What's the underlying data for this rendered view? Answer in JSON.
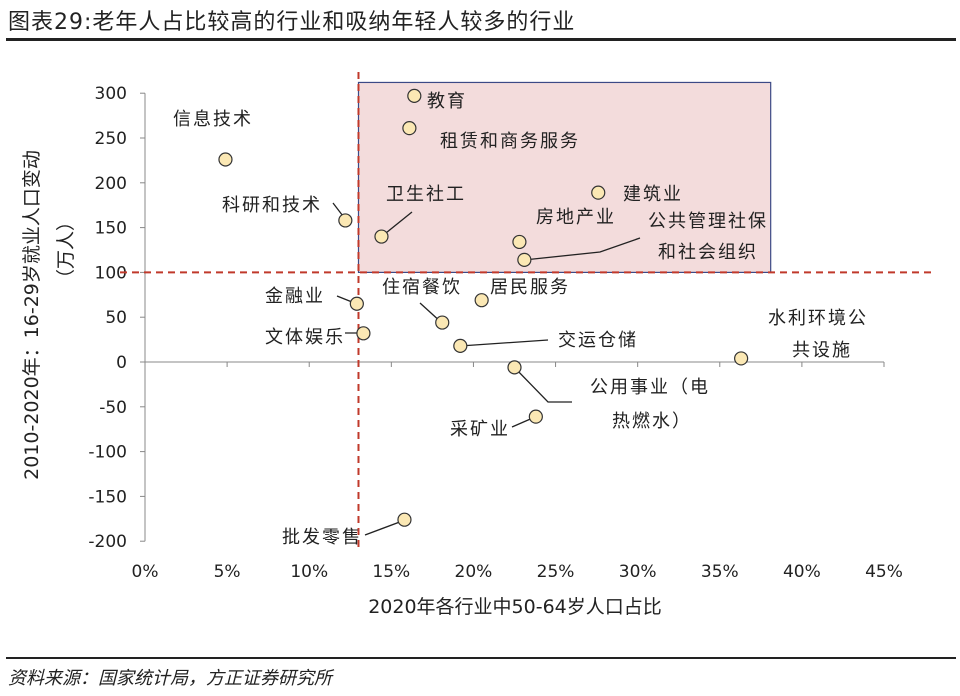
{
  "title": "图表29:老年人占比较高的行业和吸纳年轻人较多的行业",
  "source": "资料来源：国家统计局，方正证券研究所",
  "chart_data": {
    "type": "scatter",
    "xlabel": "2020年各行业中50-64岁人口占比",
    "ylabel": "2010-2020年：16-29岁就业人口变动",
    "ylabel2": "（万人）",
    "xlim": [
      0,
      45
    ],
    "ylim": [
      -200,
      300
    ],
    "xticks": [
      "0%",
      "5%",
      "10%",
      "15%",
      "20%",
      "25%",
      "30%",
      "35%",
      "40%",
      "45%"
    ],
    "yticks": [
      "300",
      "250",
      "200",
      "150",
      "100",
      "50",
      "0",
      "-50",
      "-100",
      "-150",
      "-200"
    ],
    "reference_lines": {
      "x": 13,
      "y": 100
    },
    "highlight_box": {
      "x": [
        13,
        38.1
      ],
      "y": [
        100,
        312
      ]
    },
    "marker_color": "#fbe8b4",
    "ref_line_color": "#c0392b",
    "box_color": "#3c4a86",
    "points": [
      {
        "label": "信息技术",
        "x": 4.9,
        "y": 226
      },
      {
        "label": "教育",
        "x": 16.4,
        "y": 297
      },
      {
        "label": "租赁和商务服务",
        "x": 16.1,
        "y": 261
      },
      {
        "label": "科研和技术",
        "x": 12.2,
        "y": 158
      },
      {
        "label": "卫生社工",
        "x": 14.4,
        "y": 140
      },
      {
        "label": "建筑业",
        "x": 27.6,
        "y": 189
      },
      {
        "label": "房地产业",
        "x": 22.8,
        "y": 134
      },
      {
        "label": "公共管理社保",
        "label2": "和社会组织",
        "x": 23.1,
        "y": 114
      },
      {
        "label": "金融业",
        "x": 12.9,
        "y": 65
      },
      {
        "label": "居民服务",
        "x": 20.5,
        "y": 69
      },
      {
        "label": "住宿餐饮",
        "x": 18.1,
        "y": 44
      },
      {
        "label": "文体娱乐",
        "x": 13.3,
        "y": 32
      },
      {
        "label": "交运仓储",
        "x": 19.2,
        "y": 18
      },
      {
        "label": "水利环境公",
        "label2": "共设施",
        "x": 36.3,
        "y": 4
      },
      {
        "label": "公用事业（电",
        "label2": "热燃水）",
        "x": 22.5,
        "y": -6
      },
      {
        "label": "采矿业",
        "x": 23.8,
        "y": -61
      },
      {
        "label": "批发零售",
        "x": 15.8,
        "y": -176
      }
    ]
  }
}
